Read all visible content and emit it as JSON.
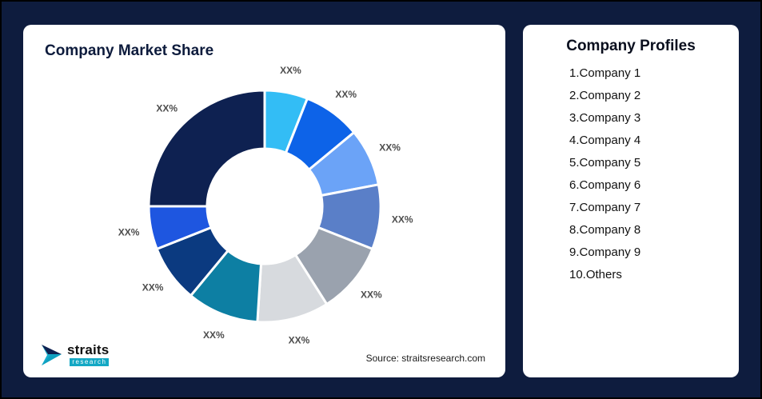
{
  "frame": {
    "bg": "#0e1c3e"
  },
  "market_share": {
    "title": "Company Market Share",
    "source": "Source: straitsresearch.com",
    "logo": {
      "name": "straits",
      "sub": "research"
    }
  },
  "profiles": {
    "title": "Company Profiles",
    "items": [
      "1.Company 1",
      "2.Company 2",
      "3.Company 3",
      "4.Company 4",
      "5.Company 5",
      "6.Company 6",
      "7.Company 7",
      "8.Company 8",
      "9.Company 9",
      "10.Others"
    ]
  },
  "chart_data": {
    "type": "pie",
    "variant": "donut",
    "title": "Company Market Share",
    "legend": "none",
    "start_angle_deg": 0,
    "direction": "clockwise",
    "categories": [
      "Company 1",
      "Company 2",
      "Company 3",
      "Company 4",
      "Company 5",
      "Company 6",
      "Company 7",
      "Company 8",
      "Company 9",
      "Others"
    ],
    "labels_shown": [
      "XX%",
      "XX%",
      "XX%",
      "XX%",
      "XX%",
      "XX%",
      "XX%",
      "XX%",
      "XX%",
      "XX%"
    ],
    "values_estimated_pct": [
      6,
      8,
      8,
      9,
      10,
      10,
      10,
      8,
      6,
      25
    ],
    "colors": [
      "#33bdf5",
      "#0d63e8",
      "#6ba3f7",
      "#5a7fc8",
      "#9aa2ae",
      "#d7dade",
      "#0d7fa3",
      "#0b3a80",
      "#1e56e0",
      "#0e2151"
    ]
  }
}
